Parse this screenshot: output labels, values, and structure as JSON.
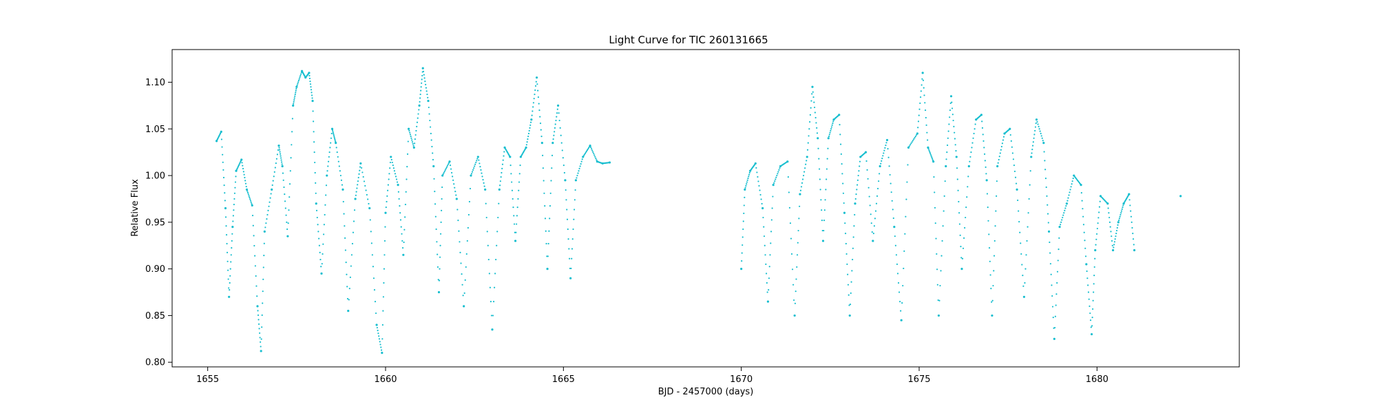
{
  "chart_data": {
    "type": "scatter",
    "title": "Light Curve for TIC 260131665",
    "xlabel": "BJD - 2457000 (days)",
    "ylabel": "Relative Flux",
    "xlim": [
      1654.0,
      1684.0
    ],
    "ylim": [
      0.795,
      1.135
    ],
    "xticks": [
      1655,
      1660,
      1665,
      1670,
      1675,
      1680
    ],
    "xtick_labels": [
      "1655",
      "1660",
      "1665",
      "1670",
      "1675",
      "1680"
    ],
    "yticks": [
      0.8,
      0.85,
      0.9,
      0.95,
      1.0,
      1.05,
      1.1
    ],
    "ytick_labels": [
      "0.80",
      "0.85",
      "0.90",
      "0.95",
      "1.00",
      "1.05",
      "1.10"
    ],
    "grid": false,
    "marker_color": "#17becf",
    "series": [
      {
        "name": "",
        "x": [
          1655.25,
          1655.38,
          1655.5,
          1655.6,
          1655.7,
          1655.8,
          1655.95,
          1656.1,
          1656.25,
          1656.4,
          1656.5,
          1656.6,
          1656.8,
          1657.0,
          1657.1,
          1657.25,
          1657.4,
          1657.5,
          1657.65,
          1657.75,
          1657.85,
          1657.95,
          1658.05,
          1658.2,
          1658.35,
          1658.5,
          1658.6,
          1658.8,
          1658.95,
          1659.15,
          1659.3,
          1659.55,
          1659.75,
          1659.9,
          1660.0,
          1660.15,
          1660.35,
          1660.5,
          1660.65,
          1660.8,
          1660.95,
          1661.05,
          1661.2,
          1661.35,
          1661.5,
          1661.6,
          1661.8,
          1662.0,
          1662.2,
          1662.4,
          1662.6,
          1662.8,
          1663.0,
          1663.2,
          1663.35,
          1663.5,
          1663.65,
          1663.8,
          1663.95,
          1664.1,
          1664.25,
          1664.4,
          1664.55,
          1664.7,
          1664.85,
          1665.05,
          1665.2,
          1665.35,
          1665.55,
          1665.75,
          1665.95,
          1666.1,
          1666.3
        ],
        "y": [
          1.037,
          1.047,
          0.965,
          0.87,
          0.945,
          1.005,
          1.017,
          0.985,
          0.968,
          0.86,
          0.812,
          0.94,
          0.985,
          1.032,
          1.01,
          0.935,
          1.075,
          1.095,
          1.112,
          1.105,
          1.11,
          1.08,
          0.97,
          0.895,
          1.0,
          1.05,
          1.035,
          0.985,
          0.855,
          0.975,
          1.013,
          0.965,
          0.84,
          0.81,
          0.96,
          1.02,
          0.99,
          0.915,
          1.05,
          1.03,
          1.075,
          1.115,
          1.08,
          1.01,
          0.875,
          1.0,
          1.015,
          0.975,
          0.86,
          1.0,
          1.02,
          0.985,
          0.835,
          0.985,
          1.03,
          1.02,
          0.93,
          1.02,
          1.03,
          1.06,
          1.105,
          1.035,
          0.9,
          1.035,
          1.075,
          0.995,
          0.89,
          0.995,
          1.02,
          1.032,
          1.015,
          1.013,
          1.014
        ]
      },
      {
        "name": "",
        "x": [
          1670.0,
          1670.1,
          1670.25,
          1670.4,
          1670.6,
          1670.75,
          1670.9,
          1671.1,
          1671.3,
          1671.5,
          1671.65,
          1671.85,
          1672.0,
          1672.15,
          1672.3,
          1672.45,
          1672.6,
          1672.75,
          1672.9,
          1673.05,
          1673.2,
          1673.35,
          1673.5,
          1673.7,
          1673.9,
          1674.1,
          1674.3,
          1674.5,
          1674.7,
          1674.95,
          1675.1,
          1675.25,
          1675.4,
          1675.55,
          1675.75,
          1675.9,
          1676.05,
          1676.2,
          1676.4,
          1676.6,
          1676.75,
          1676.9,
          1677.05,
          1677.2,
          1677.4,
          1677.55,
          1677.75,
          1677.95,
          1678.15,
          1678.3,
          1678.5,
          1678.65,
          1678.8,
          1678.95,
          1679.15,
          1679.35,
          1679.55,
          1679.7,
          1679.85,
          1679.95,
          1680.1,
          1680.3,
          1680.45,
          1680.6,
          1680.75,
          1680.9,
          1681.05,
          1682.35
        ],
        "y": [
          0.9,
          0.985,
          1.005,
          1.013,
          0.965,
          0.865,
          0.99,
          1.01,
          1.015,
          0.85,
          0.98,
          1.02,
          1.095,
          1.04,
          0.93,
          1.04,
          1.06,
          1.065,
          0.96,
          0.85,
          0.97,
          1.02,
          1.025,
          0.93,
          1.01,
          1.038,
          0.945,
          0.845,
          1.03,
          1.045,
          1.11,
          1.03,
          1.015,
          0.85,
          1.01,
          1.085,
          1.02,
          0.9,
          1.01,
          1.06,
          1.065,
          0.995,
          0.85,
          1.01,
          1.045,
          1.05,
          0.985,
          0.87,
          1.02,
          1.06,
          1.035,
          0.94,
          0.825,
          0.945,
          0.97,
          1.0,
          0.99,
          0.905,
          0.83,
          0.92,
          0.978,
          0.97,
          0.92,
          0.95,
          0.97,
          0.98,
          0.92,
          0.978
        ]
      }
    ]
  }
}
